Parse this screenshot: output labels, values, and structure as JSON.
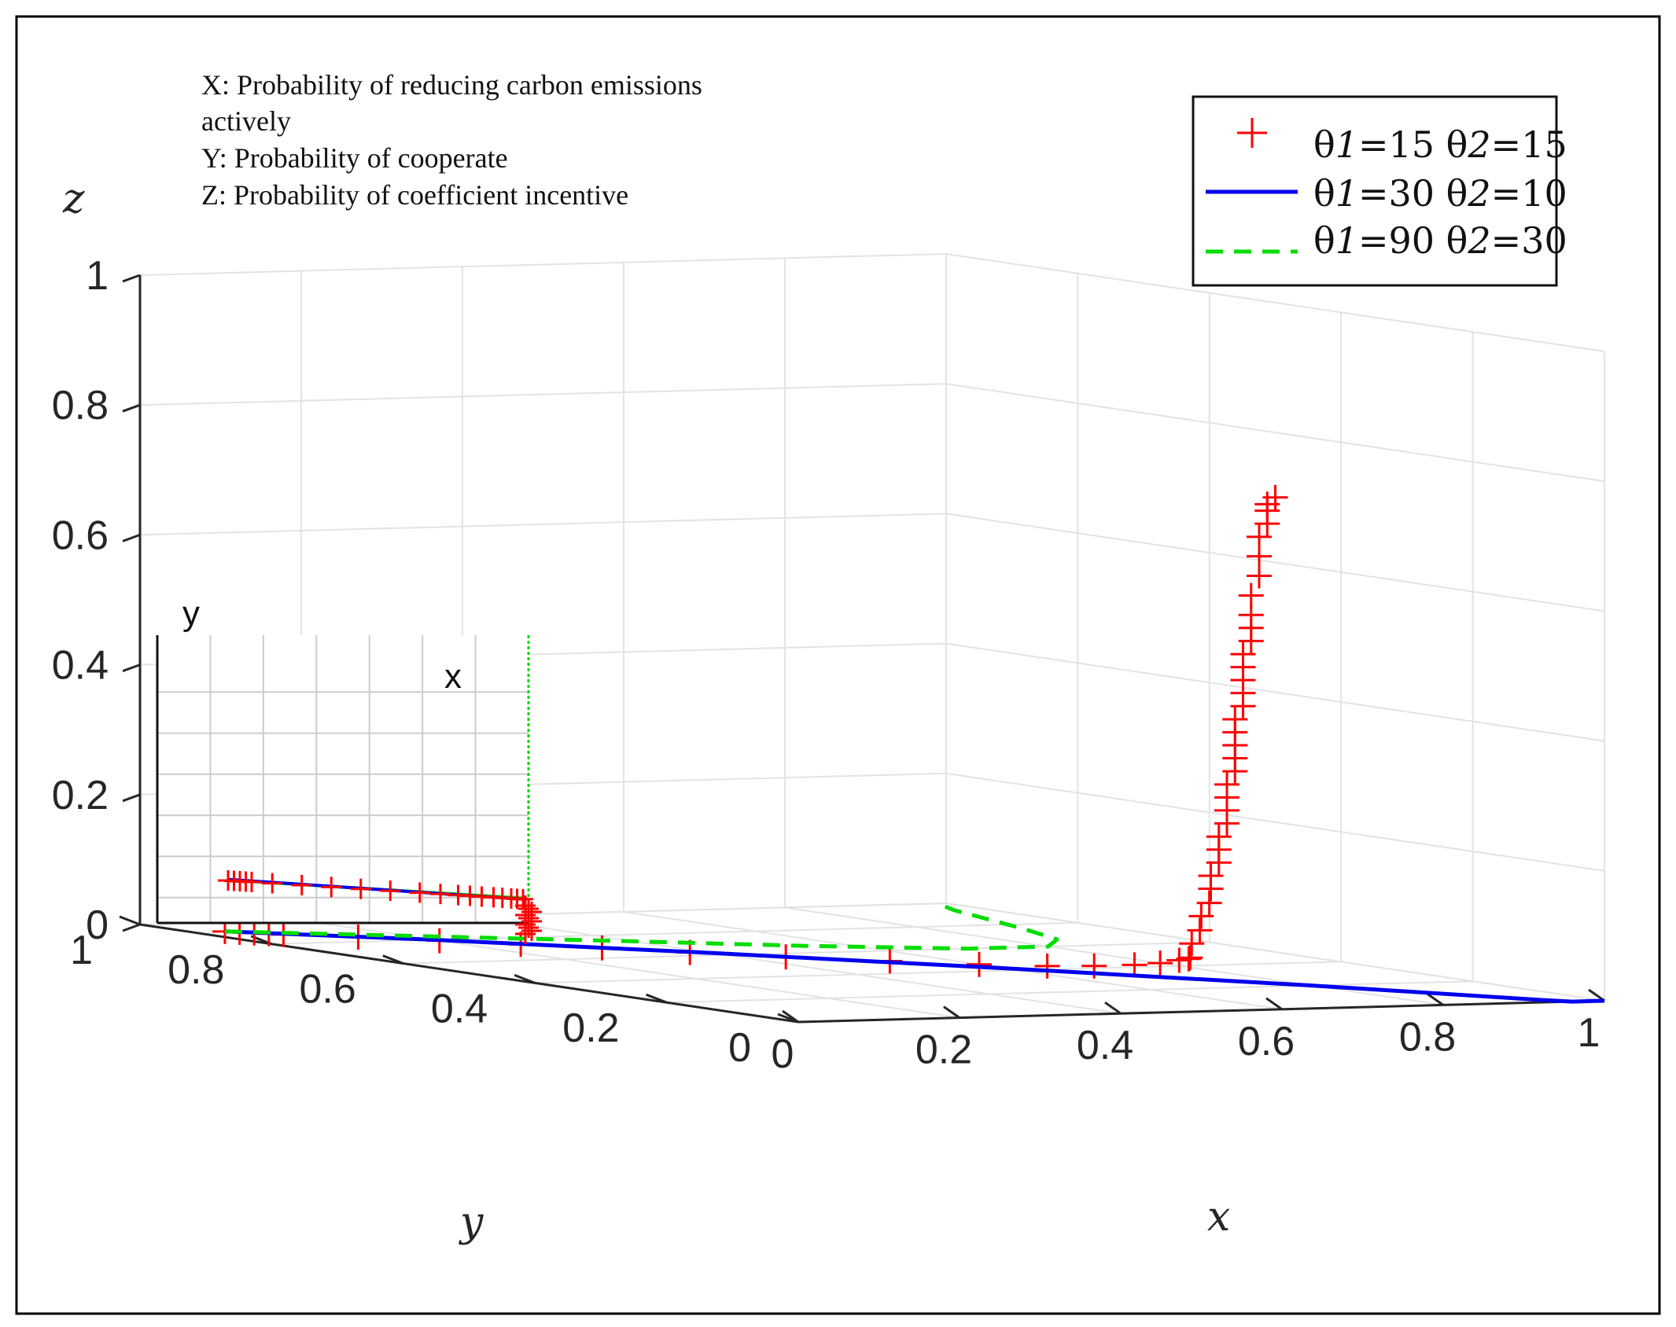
{
  "chart_data": {
    "type": "line3d",
    "annotation": {
      "x_def": "X:   Probability of reducing  carbon emissions",
      "x_def_cont": "actively",
      "y_def": "Y:    Probability of cooperate",
      "z_def": "Z:    Probability of coefficient incentive"
    },
    "axes": {
      "xlabel": "x",
      "ylabel": "y",
      "zlabel": "z",
      "xlim": [
        0,
        1
      ],
      "ylim": [
        0,
        1
      ],
      "zlim": [
        0,
        1
      ],
      "x_ticks": [
        "0",
        "0.2",
        "0.4",
        "0.6",
        "0.8",
        "1"
      ],
      "y_ticks": [
        "0",
        "0.2",
        "0.4",
        "0.6",
        "0.8",
        "1"
      ],
      "z_ticks": [
        "0",
        "0.2",
        "0.4",
        "0.6",
        "0.8",
        "1"
      ],
      "grid": true
    },
    "legend": {
      "location": "top-right",
      "entries": [
        {
          "pre": "θ",
          "it1": "1",
          "mid": "=15 θ",
          "it2": "2",
          "post": "=15"
        },
        {
          "pre": "θ",
          "it1": "1",
          "mid": "=30 θ",
          "it2": "2",
          "post": "=10"
        },
        {
          "pre": "θ",
          "it1": "1",
          "mid": "=90 θ",
          "it2": "2",
          "post": "=30"
        }
      ]
    },
    "series": [
      {
        "name": "θ1=15 θ2=15",
        "style": "red-plus-markers",
        "color": "#ff0000",
        "points": [
          [
            0.04,
            0.92,
            0.0
          ],
          [
            0.05,
            0.91,
            0.0
          ],
          [
            0.06,
            0.9,
            0.0
          ],
          [
            0.07,
            0.89,
            0.0
          ],
          [
            0.08,
            0.88,
            0.0
          ],
          [
            0.14,
            0.84,
            0.0
          ],
          [
            0.2,
            0.79,
            0.0
          ],
          [
            0.26,
            0.74,
            0.0
          ],
          [
            0.32,
            0.69,
            0.0
          ],
          [
            0.38,
            0.63,
            0.0
          ],
          [
            0.45,
            0.57,
            0.0
          ],
          [
            0.53,
            0.51,
            0.0
          ],
          [
            0.6,
            0.46,
            0.0
          ],
          [
            0.66,
            0.43,
            0.0
          ],
          [
            0.71,
            0.42,
            0.0
          ],
          [
            0.76,
            0.42,
            0.0
          ],
          [
            0.8,
            0.43,
            0.0
          ],
          [
            0.84,
            0.45,
            0.0
          ],
          [
            0.86,
            0.46,
            0.0
          ],
          [
            0.87,
            0.47,
            0.0
          ],
          [
            0.88,
            0.48,
            0.02
          ],
          [
            0.89,
            0.48,
            0.04
          ],
          [
            0.9,
            0.49,
            0.06
          ],
          [
            0.91,
            0.49,
            0.08
          ],
          [
            0.92,
            0.5,
            0.1
          ],
          [
            0.92,
            0.5,
            0.12
          ],
          [
            0.93,
            0.5,
            0.14
          ],
          [
            0.93,
            0.5,
            0.16
          ],
          [
            0.93,
            0.5,
            0.18
          ],
          [
            0.94,
            0.5,
            0.2
          ],
          [
            0.94,
            0.5,
            0.22
          ],
          [
            0.94,
            0.5,
            0.24
          ],
          [
            0.94,
            0.5,
            0.26
          ],
          [
            0.95,
            0.5,
            0.28
          ],
          [
            0.95,
            0.5,
            0.3
          ],
          [
            0.95,
            0.5,
            0.32
          ],
          [
            0.95,
            0.5,
            0.34
          ],
          [
            0.95,
            0.5,
            0.36
          ],
          [
            0.96,
            0.5,
            0.38
          ],
          [
            0.96,
            0.5,
            0.4
          ],
          [
            0.96,
            0.5,
            0.42
          ],
          [
            0.96,
            0.5,
            0.44
          ],
          [
            0.96,
            0.5,
            0.46
          ],
          [
            0.97,
            0.5,
            0.48
          ],
          [
            0.97,
            0.5,
            0.5
          ],
          [
            0.97,
            0.5,
            0.52
          ],
          [
            0.97,
            0.5,
            0.55
          ],
          [
            0.98,
            0.5,
            0.58
          ],
          [
            0.98,
            0.5,
            0.61
          ],
          [
            0.98,
            0.5,
            0.64
          ],
          [
            0.99,
            0.5,
            0.66
          ],
          [
            0.99,
            0.5,
            0.68
          ],
          [
            0.99,
            0.5,
            0.69
          ],
          [
            1.0,
            0.5,
            0.7
          ]
        ]
      },
      {
        "name": "θ1=30 θ2=10",
        "style": "blue-solid",
        "color": "#0000ee",
        "points": [
          [
            0.04,
            0.92,
            0.0
          ],
          [
            0.2,
            0.8,
            0.0
          ],
          [
            0.4,
            0.62,
            0.0
          ],
          [
            0.6,
            0.42,
            0.0
          ],
          [
            0.8,
            0.2,
            0.0
          ],
          [
            0.94,
            0.02,
            0.0
          ],
          [
            0.96,
            0.0,
            0.0
          ],
          [
            0.98,
            0.0,
            0.0
          ],
          [
            1.0,
            0.0,
            0.0
          ]
        ]
      },
      {
        "name": "θ1=90 θ2=30",
        "style": "green-dashed",
        "color": "#00dd00",
        "points": [
          [
            0.04,
            0.92,
            0.0
          ],
          [
            0.2,
            0.84,
            0.0
          ],
          [
            0.4,
            0.74,
            0.0
          ],
          [
            0.55,
            0.66,
            0.0
          ],
          [
            0.7,
            0.6,
            0.0
          ],
          [
            0.8,
            0.6,
            0.0
          ],
          [
            0.86,
            0.66,
            0.0
          ],
          [
            0.9,
            0.76,
            0.0
          ],
          [
            0.93,
            0.85,
            0.0
          ],
          [
            0.96,
            0.94,
            0.0
          ],
          [
            0.97,
            0.96,
            0.0
          ],
          [
            0.98,
            0.98,
            0.0
          ],
          [
            0.99,
            0.99,
            0.0
          ],
          [
            1.0,
            1.0,
            0.0
          ]
        ]
      }
    ],
    "inset": {
      "xlabel": "x",
      "ylabel": "y",
      "description": "top view (x–y plane) of the three trajectories"
    }
  }
}
